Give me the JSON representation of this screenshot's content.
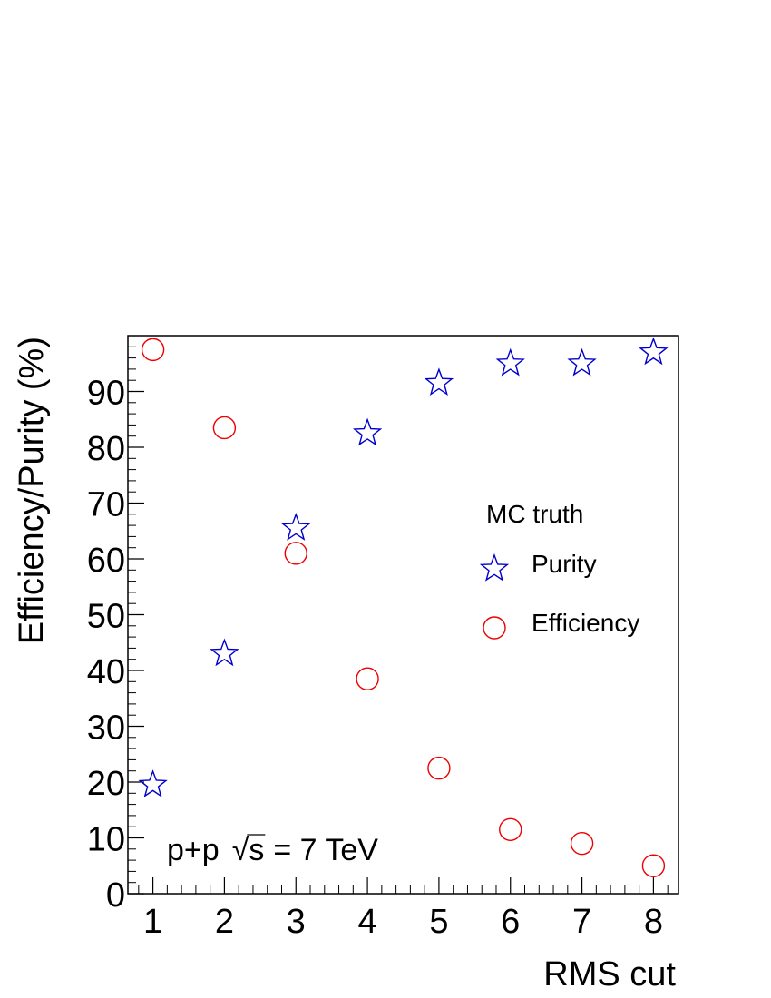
{
  "chart_data": {
    "type": "scatter",
    "xlabel": "RMS cut",
    "ylabel": "Efficiency/Purity (%)",
    "xlim": [
      0.65,
      8.35
    ],
    "ylim": [
      0,
      100
    ],
    "x_ticks": [
      1,
      2,
      3,
      4,
      5,
      6,
      7,
      8
    ],
    "y_ticks": [
      0,
      10,
      20,
      30,
      40,
      50,
      60,
      70,
      80,
      90
    ],
    "legend": {
      "title": "MC truth",
      "placement": "right-middle"
    },
    "annotation": {
      "prefix": "p+p",
      "sqrt_arg": "s",
      "suffix": "= 7 TeV"
    },
    "series": [
      {
        "name": "Purity",
        "marker": "open-star",
        "color": "#0000cc",
        "x": [
          1,
          2,
          3,
          4,
          5,
          6,
          7,
          8
        ],
        "y": [
          19.5,
          43,
          65.5,
          82.5,
          91.5,
          95,
          95,
          97
        ]
      },
      {
        "name": "Efficiency",
        "marker": "open-circle",
        "color": "#ee0000",
        "x": [
          1,
          2,
          3,
          4,
          5,
          6,
          7,
          8
        ],
        "y": [
          97.5,
          83.5,
          61,
          38.5,
          22.5,
          11.5,
          9,
          5
        ]
      }
    ]
  }
}
